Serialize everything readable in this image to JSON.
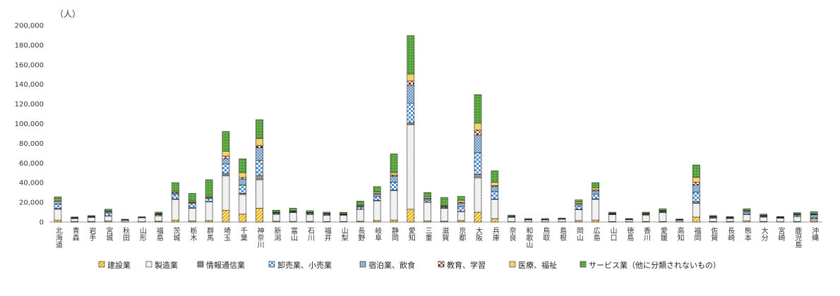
{
  "chart_data": {
    "type": "bar",
    "stacked": true,
    "unit_label": "（人）",
    "ylim": [
      0,
      200000
    ],
    "yticks": [
      0,
      20000,
      40000,
      60000,
      80000,
      100000,
      120000,
      140000,
      160000,
      180000,
      200000
    ],
    "ytick_labels": [
      "0",
      "20,000",
      "40,000",
      "60,000",
      "80,000",
      "100,000",
      "120,000",
      "140,000",
      "160,000",
      "180,000",
      "200,000"
    ],
    "categories": [
      "北海道",
      "青森",
      "岩手",
      "宮城",
      "秋田",
      "山形",
      "福島",
      "茨城",
      "栃木",
      "群馬",
      "埼玉",
      "千葉",
      "神奈川",
      "新潟",
      "富山",
      "石川",
      "福井",
      "山梨",
      "長野",
      "岐阜",
      "静岡",
      "愛知",
      "三重",
      "滋賀",
      "京都",
      "大阪",
      "兵庫",
      "奈良",
      "和歌山",
      "鳥取",
      "島根",
      "岡山",
      "広島",
      "山口",
      "徳島",
      "香川",
      "愛媛",
      "高知",
      "福岡",
      "佐賀",
      "長崎",
      "熊本",
      "大分",
      "宮崎",
      "鹿児島",
      "沖縄"
    ],
    "series": [
      {
        "name": "建設業",
        "values": [
          2000,
          500,
          500,
          1000,
          200,
          300,
          800,
          2000,
          1000,
          1500,
          12000,
          8000,
          14000,
          800,
          600,
          600,
          400,
          400,
          800,
          1500,
          2000,
          13000,
          1000,
          800,
          1500,
          10000,
          3500,
          300,
          200,
          200,
          200,
          1500,
          2000,
          500,
          300,
          500,
          500,
          300,
          5000,
          500,
          500,
          1000,
          500,
          300,
          500,
          1000
        ]
      },
      {
        "name": "製造業",
        "values": [
          11000,
          3000,
          4000,
          5000,
          1500,
          4000,
          5500,
          21000,
          13000,
          19000,
          35000,
          20000,
          29000,
          7000,
          9000,
          7000,
          6500,
          6500,
          12000,
          20000,
          30000,
          86000,
          19000,
          13000,
          9000,
          35000,
          19500,
          4500,
          2000,
          2000,
          2500,
          11000,
          21000,
          7000,
          2000,
          6500,
          9000,
          1500,
          14000,
          3500,
          3000,
          6500,
          4500,
          3500,
          5000,
          2000
        ]
      },
      {
        "name": "情報通信業",
        "values": [
          700,
          100,
          100,
          300,
          50,
          100,
          200,
          500,
          500,
          300,
          2000,
          1200,
          4500,
          200,
          200,
          200,
          150,
          100,
          300,
          400,
          500,
          2000,
          300,
          200,
          300,
          3500,
          500,
          100,
          50,
          50,
          50,
          400,
          600,
          100,
          50,
          200,
          200,
          50,
          1500,
          100,
          100,
          200,
          100,
          100,
          100,
          300
        ]
      },
      {
        "name": "卸売業、小売業",
        "values": [
          4500,
          400,
          600,
          3000,
          300,
          200,
          1000,
          4500,
          4500,
          3000,
          10000,
          8500,
          15000,
          1000,
          700,
          1000,
          800,
          600,
          2000,
          4000,
          8000,
          20000,
          2000,
          1000,
          5000,
          22000,
          7500,
          300,
          200,
          200,
          300,
          3500,
          5000,
          500,
          300,
          600,
          800,
          300,
          10000,
          700,
          600,
          1500,
          700,
          500,
          1200,
          1500
        ]
      },
      {
        "name": "宿泊業、飲食",
        "values": [
          3000,
          200,
          200,
          1200,
          100,
          100,
          500,
          1500,
          800,
          800,
          5500,
          6000,
          13000,
          400,
          300,
          500,
          400,
          300,
          1000,
          2500,
          6000,
          18000,
          1500,
          500,
          3500,
          18000,
          5000,
          200,
          100,
          100,
          100,
          2000,
          3000,
          300,
          200,
          400,
          600,
          200,
          7000,
          400,
          300,
          1500,
          400,
          300,
          800,
          2500
        ]
      },
      {
        "name": "教育、学習",
        "values": [
          500,
          100,
          100,
          200,
          50,
          50,
          200,
          800,
          500,
          400,
          2500,
          1500,
          2500,
          200,
          200,
          200,
          100,
          100,
          300,
          500,
          1200,
          4500,
          300,
          300,
          800,
          5000,
          1000,
          100,
          50,
          50,
          50,
          500,
          1000,
          200,
          50,
          200,
          200,
          50,
          3000,
          200,
          150,
          300,
          200,
          100,
          200,
          400
        ]
      },
      {
        "name": "医療、福祉",
        "values": [
          1500,
          200,
          200,
          700,
          100,
          150,
          400,
          1200,
          1200,
          1000,
          5000,
          5000,
          7000,
          400,
          300,
          300,
          300,
          300,
          800,
          1500,
          2500,
          7000,
          1500,
          800,
          2000,
          7000,
          3500,
          200,
          100,
          100,
          100,
          1500,
          2000,
          300,
          200,
          400,
          400,
          200,
          5000,
          300,
          200,
          800,
          400,
          200,
          500,
          500
        ]
      },
      {
        "name": "サービス業（他に分類されないもの）",
        "values": [
          2300,
          600,
          800,
          1600,
          500,
          400,
          1400,
          8500,
          7500,
          17000,
          20000,
          14000,
          19000,
          2000,
          2700,
          1700,
          1350,
          1600,
          4000,
          5600,
          19000,
          39000,
          4400,
          8400,
          3900,
          29000,
          11500,
          1300,
          800,
          800,
          700,
          2100,
          5400,
          1100,
          400,
          1200,
          1800,
          400,
          12500,
          800,
          600,
          1700,
          1200,
          500,
          1200,
          2300
        ]
      }
    ],
    "legend": {
      "placement": "bottom"
    }
  }
}
